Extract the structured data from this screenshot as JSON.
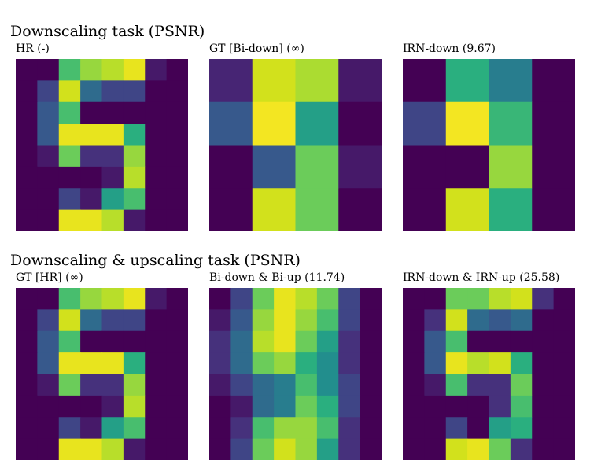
{
  "palette": [
    "#440154",
    "#472c7a",
    "#3b518b",
    "#2c718e",
    "#21908d",
    "#27ad81",
    "#5cc863",
    "#aadc32",
    "#d8e219",
    "#fde725"
  ],
  "sections": [
    {
      "title": "Downscaling task (PSNR)",
      "panels": [
        {
          "title": "HR (-)",
          "rows": 8,
          "cols": 8
        },
        {
          "title": "GT [Bi-down] (∞)",
          "rows": 4,
          "cols": 4
        },
        {
          "title": "IRN-down (9.67)",
          "rows": 4,
          "cols": 4
        }
      ]
    },
    {
      "title": "Downscaling & upscaling task (PSNR)",
      "panels": [
        {
          "title": "GT [HR] (∞)",
          "rows": 8,
          "cols": 8
        },
        {
          "title": "Bi-down & Bi-up (11.74)",
          "rows": 8,
          "cols": 8
        },
        {
          "title": "IRN-down & IRN-up (25.58)",
          "rows": 8,
          "cols": 8
        }
      ]
    }
  ],
  "chart_data": [
    {
      "type": "heatmap",
      "title": "HR (-)",
      "colormap": "viridis",
      "vmin": 0,
      "vmax": 16,
      "values": [
        [
          0,
          0,
          10,
          12,
          13,
          15,
          1,
          0
        ],
        [
          0,
          3,
          14,
          5,
          3,
          3,
          0,
          0
        ],
        [
          0,
          4,
          10,
          0,
          0,
          0,
          0,
          0
        ],
        [
          0,
          4,
          15,
          15,
          15,
          9,
          0,
          0
        ],
        [
          0,
          1,
          11,
          2,
          2,
          12,
          0,
          0
        ],
        [
          0,
          0,
          0,
          0,
          1,
          13,
          0,
          0
        ],
        [
          0,
          0,
          3,
          1,
          8,
          10,
          0,
          0
        ],
        [
          0,
          0,
          15,
          15,
          13,
          1,
          0,
          0
        ]
      ]
    },
    {
      "type": "heatmap",
      "title": "GT [Bi-down] (∞)",
      "colormap": "viridis",
      "vmin": 0,
      "vmax": 16,
      "values": [
        [
          1.5,
          14,
          12.5,
          1
        ],
        [
          4,
          15.5,
          8,
          0
        ],
        [
          0,
          4,
          11,
          1
        ],
        [
          0,
          14,
          11,
          0
        ]
      ]
    },
    {
      "type": "heatmap",
      "title": "IRN-down (9.67)",
      "colormap": "viridis",
      "vmin": 0,
      "vmax": 16,
      "values": [
        [
          0,
          9,
          6,
          0
        ],
        [
          3,
          15.5,
          9.5,
          0
        ],
        [
          0,
          0,
          12,
          0
        ],
        [
          0,
          14,
          9,
          0
        ]
      ]
    },
    {
      "type": "heatmap",
      "title": "GT [HR] (∞)",
      "colormap": "viridis",
      "vmin": 0,
      "vmax": 16,
      "values": [
        [
          0,
          0,
          10,
          12,
          13,
          15,
          1,
          0
        ],
        [
          0,
          3,
          14,
          5,
          3,
          3,
          0,
          0
        ],
        [
          0,
          4,
          10,
          0,
          0,
          0,
          0,
          0
        ],
        [
          0,
          4,
          15,
          15,
          15,
          9,
          0,
          0
        ],
        [
          0,
          1,
          11,
          2,
          2,
          12,
          0,
          0
        ],
        [
          0,
          0,
          0,
          0,
          1,
          13,
          0,
          0
        ],
        [
          0,
          0,
          3,
          1,
          8,
          10,
          0,
          0
        ],
        [
          0,
          0,
          15,
          15,
          13,
          1,
          0,
          0
        ]
      ]
    },
    {
      "type": "heatmap",
      "title": "Bi-down & Bi-up (11.74)",
      "colormap": "viridis",
      "vmin": 0,
      "vmax": 16,
      "values": [
        [
          0,
          3,
          11,
          15,
          13,
          11,
          3,
          0
        ],
        [
          1,
          4,
          12,
          15,
          12,
          10,
          3,
          0
        ],
        [
          2,
          5,
          13,
          15,
          11,
          8,
          2,
          0
        ],
        [
          2,
          5,
          11,
          12,
          9,
          7,
          2,
          0
        ],
        [
          1,
          3,
          5,
          6,
          10,
          7,
          3,
          0
        ],
        [
          0,
          1,
          5,
          6,
          11,
          9,
          3,
          0
        ],
        [
          0,
          2,
          10,
          12,
          12,
          10,
          2,
          0
        ],
        [
          0,
          3,
          11,
          14,
          12,
          8,
          2,
          0
        ]
      ]
    },
    {
      "type": "heatmap",
      "title": "IRN-down & IRN-up (25.58)",
      "colormap": "viridis",
      "vmin": 0,
      "vmax": 16,
      "values": [
        [
          0,
          0,
          11,
          11,
          13,
          14,
          2,
          0
        ],
        [
          0,
          2,
          14,
          5,
          4,
          5,
          0,
          0
        ],
        [
          0,
          4,
          10,
          0,
          0,
          0,
          0,
          0
        ],
        [
          0,
          4,
          15,
          13,
          14,
          9,
          0,
          0
        ],
        [
          0,
          1,
          10,
          2,
          2,
          11,
          0,
          0
        ],
        [
          0,
          0,
          0,
          0,
          2,
          10,
          0,
          0
        ],
        [
          0,
          0,
          3,
          0,
          8,
          9,
          0,
          0
        ],
        [
          0,
          0,
          14,
          15,
          11,
          2,
          0,
          0
        ]
      ]
    }
  ]
}
